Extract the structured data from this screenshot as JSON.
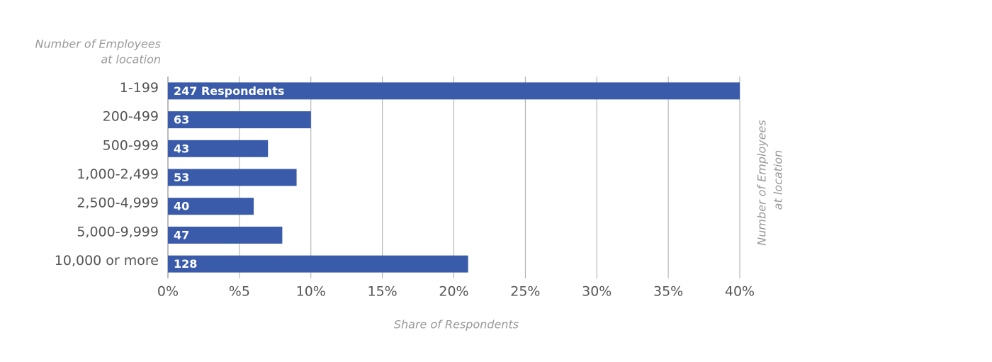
{
  "chart_data": {
    "type": "bar",
    "orientation": "horizontal",
    "y_label_lines": [
      "Number of Employees",
      "at location"
    ],
    "x_label": "Share of Respondents",
    "categories": [
      "1-199",
      "200-499",
      "500-999",
      "1,000-2,499",
      "2,500-4,999",
      "5,000-9,999",
      "10,000 or more"
    ],
    "values": [
      40,
      10,
      7,
      9,
      6,
      8,
      21
    ],
    "respondent_labels": [
      "247 Respondents",
      "63",
      "43",
      "53",
      "40",
      "47",
      "128"
    ],
    "color": "#3a5ba9",
    "xlim": [
      0,
      40
    ],
    "xticks": [
      {
        "value": 0,
        "label": "0%"
      },
      {
        "value": 5,
        "label": "%5"
      },
      {
        "value": 10,
        "label": "10%"
      },
      {
        "value": 15,
        "label": "15%"
      },
      {
        "value": 20,
        "label": "20%"
      },
      {
        "value": 25,
        "label": "25%"
      },
      {
        "value": 30,
        "label": "30%"
      },
      {
        "value": 35,
        "label": "35%"
      },
      {
        "value": 40,
        "label": "40%"
      }
    ],
    "grid": true
  }
}
